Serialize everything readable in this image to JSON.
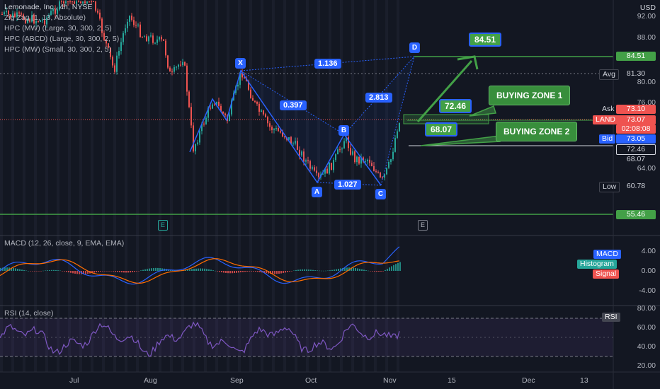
{
  "header": {
    "title": "Lemonade, Inc., 4h, NYSE",
    "currency": "USD",
    "indicators": [
      "Zig Zag (1, 13, Absolute)",
      "HPC (MW) (Large, 30, 300, 2, 5)",
      "HPC (ABCD) (Large, 30, 300, 2, 5)",
      "HPC (MW) (Small, 30, 300, 2, 5)"
    ]
  },
  "price_axis": {
    "ticks": [
      "92.00",
      "88.00",
      "80.00",
      "76.00",
      "64.00"
    ],
    "tags": {
      "target": "84.51",
      "avg_label": "Avg",
      "avg": "81.30",
      "ask_label": "Ask",
      "ask": "73.10",
      "symbol": "LAND",
      "last": "73.07",
      "countdown": "02:08:08",
      "bid_label": "Bid",
      "bid": "73.05",
      "zone1": "72.46",
      "zone2": "68.07",
      "low_label": "Low",
      "low": "60.78",
      "support": "55.46"
    }
  },
  "pattern": {
    "points": {
      "x": "X",
      "a": "A",
      "b": "B",
      "c": "C",
      "d": "D"
    },
    "ratios": {
      "xb": "0.397",
      "xd": "1.136",
      "bd": "2.813",
      "ac": "1.027"
    },
    "target_box": "84.51",
    "zone1_box": "72.46",
    "zone2_box": "68.07",
    "zone1_label": "BUYING ZONE 1",
    "zone2_label": "BUYING ZONE 2",
    "event_mark": "E"
  },
  "macd": {
    "legend": "MACD (12, 26, close, 9, EMA, EMA)",
    "ticks": [
      "4.00",
      "0.00",
      "-4.00"
    ],
    "tags": {
      "macd": "MACD",
      "histogram": "Histogram",
      "signal": "Signal"
    },
    "colors": {
      "macd": "#2962ff",
      "signal": "#ff6d00",
      "up": "#26a69a",
      "down": "#ef5350"
    }
  },
  "rsi": {
    "legend": "RSI (14, close)",
    "ticks": [
      "80.00",
      "60.00",
      "40.00",
      "20.00"
    ],
    "tag": "RSI",
    "color": "#7e57c2"
  },
  "time_axis": [
    "Jul",
    "Aug",
    "Sep",
    "Oct",
    "Nov",
    "15",
    "Dec",
    "13"
  ],
  "colors": {
    "bull": "#26a69a",
    "bear": "#ef5350",
    "pattern": "#2962ff",
    "green": "#43a047"
  }
}
